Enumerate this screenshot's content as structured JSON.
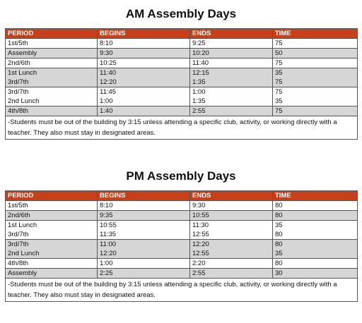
{
  "tables": [
    {
      "title": "AM Assembly Days",
      "header": [
        "PERIOD",
        "BEGINS",
        "ENDS",
        "TIME"
      ],
      "rows": [
        {
          "shaded": false,
          "cells": [
            [
              "1st/5th"
            ],
            [
              "8:10"
            ],
            [
              "9:25"
            ],
            [
              "75"
            ]
          ]
        },
        {
          "shaded": true,
          "cells": [
            [
              "Assembly"
            ],
            [
              "9:30"
            ],
            [
              "10:20"
            ],
            [
              "50"
            ]
          ]
        },
        {
          "shaded": false,
          "cells": [
            [
              "2nd/6th"
            ],
            [
              "10:25"
            ],
            [
              "11:40"
            ],
            [
              "75"
            ]
          ]
        },
        {
          "shaded": true,
          "cells": [
            [
              "1st Lunch",
              "3rd/7th"
            ],
            [
              "11:40",
              "12:20"
            ],
            [
              "12:15",
              "1:35"
            ],
            [
              "35",
              "75"
            ]
          ]
        },
        {
          "shaded": false,
          "cells": [
            [
              "3rd/7th",
              "2nd Lunch"
            ],
            [
              "11:45",
              "1:00"
            ],
            [
              "1:00",
              "1:35"
            ],
            [
              "75",
              "35"
            ]
          ]
        },
        {
          "shaded": true,
          "cells": [
            [
              "4th/8th"
            ],
            [
              "1:40"
            ],
            [
              "2:55"
            ],
            [
              "75"
            ]
          ]
        }
      ],
      "note": "-Students must be out of the building by 3:15 unless attending a specific club, activity, or working directly with a teacher. They also must stay in designated areas."
    },
    {
      "title": "PM Assembly Days",
      "header": [
        "PERIOD",
        "BEGINS",
        "ENDS",
        "TIME"
      ],
      "rows": [
        {
          "shaded": false,
          "cells": [
            [
              "1st/5th"
            ],
            [
              "8:10"
            ],
            [
              "9:30"
            ],
            [
              "80"
            ]
          ]
        },
        {
          "shaded": true,
          "cells": [
            [
              "2nd/6th"
            ],
            [
              "9:35"
            ],
            [
              "10:55"
            ],
            [
              "80"
            ]
          ]
        },
        {
          "shaded": false,
          "cells": [
            [
              "1st Lunch",
              "3rd/7th"
            ],
            [
              "10:55",
              "11:35"
            ],
            [
              "11:30",
              "12:55"
            ],
            [
              "35",
              "80"
            ]
          ]
        },
        {
          "shaded": true,
          "cells": [
            [
              "3rd/7th",
              "2nd Lunch"
            ],
            [
              "11:00",
              "12:20"
            ],
            [
              "12:20",
              "12:55"
            ],
            [
              "80",
              "35"
            ]
          ]
        },
        {
          "shaded": false,
          "cells": [
            [
              "4th/8th"
            ],
            [
              "1:00"
            ],
            [
              "2:20"
            ],
            [
              "80"
            ]
          ]
        },
        {
          "shaded": true,
          "cells": [
            [
              "Assembly"
            ],
            [
              "2:25"
            ],
            [
              "2:55"
            ],
            [
              "30"
            ]
          ]
        }
      ],
      "note": "-Students must be out of the building by 3:15 unless attending a specific club, activity, or working directly with a teacher. They also must stay in designated areas."
    }
  ]
}
